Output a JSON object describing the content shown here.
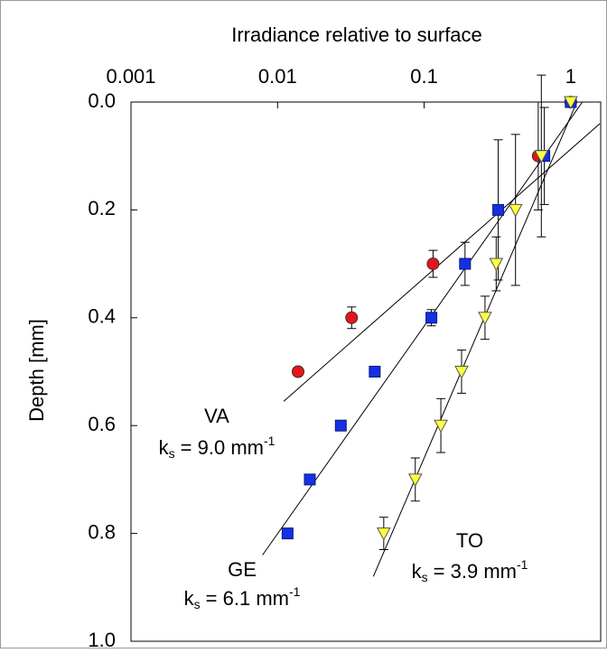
{
  "chart_data": {
    "type": "scatter",
    "xlabel": "Irradiance relative to surface",
    "ylabel": "Depth [mm]",
    "xscale": "log",
    "xlim": [
      0.001,
      1.6
    ],
    "xticks": [
      0.001,
      0.01,
      0.1,
      1
    ],
    "ylim": [
      0,
      1
    ],
    "yinverted": true,
    "yticks": [
      {
        "value": 0,
        "label": "0.0"
      },
      0.2,
      0.4,
      0.6,
      0.8,
      {
        "value": 1,
        "label": "1.0"
      }
    ],
    "series": [
      {
        "name": "VA",
        "color": "#e8141b",
        "marker": "circle",
        "x": [
          1,
          0.6,
          0.115,
          0.032,
          0.0138
        ],
        "y": [
          0,
          0.1,
          0.3,
          0.4,
          0.5
        ],
        "yerr": [
          null,
          0.1,
          0.025,
          0.02,
          null
        ]
      },
      {
        "name": "GE",
        "color": "#1530e0",
        "marker": "square",
        "x": [
          1,
          0.66,
          0.32,
          0.19,
          0.112,
          0.046,
          0.027,
          0.0166,
          0.0117
        ],
        "y": [
          0,
          0.1,
          0.2,
          0.3,
          0.4,
          0.5,
          0.6,
          0.7,
          0.8
        ],
        "yerr": [
          null,
          0.09,
          0.13,
          0.04,
          0.015,
          null,
          null,
          null,
          null
        ]
      },
      {
        "name": "TO",
        "color": "#ffff40",
        "marker": "triangle-down",
        "x": [
          1,
          0.63,
          0.42,
          0.31,
          0.26,
          0.18,
          0.13,
          0.087,
          0.053
        ],
        "y": [
          0,
          0.1,
          0.2,
          0.3,
          0.4,
          0.5,
          0.6,
          0.7,
          0.8
        ],
        "yerr": [
          null,
          0.15,
          0.14,
          0.05,
          0.04,
          0.04,
          0.05,
          0.04,
          0.03
        ]
      }
    ],
    "fits": [
      {
        "x": [
          1.58,
          0.011
        ],
        "y": [
          0.04,
          0.555
        ]
      },
      {
        "x": [
          1.2,
          0.0079
        ],
        "y": [
          0,
          0.84
        ]
      },
      {
        "x": [
          1.1,
          0.045
        ],
        "y": [
          0,
          0.88
        ]
      }
    ],
    "annotations": [
      {
        "k": "k",
        "sub": "s",
        "eq": " = 9.0 mm",
        "sup": "-1"
      },
      {
        "k": "k",
        "sub": "s",
        "eq": " = 6.1 mm",
        "sup": "-1"
      },
      {
        "k": "k",
        "sub": "s",
        "eq": " = 3.9 mm",
        "sup": "-1"
      }
    ]
  }
}
